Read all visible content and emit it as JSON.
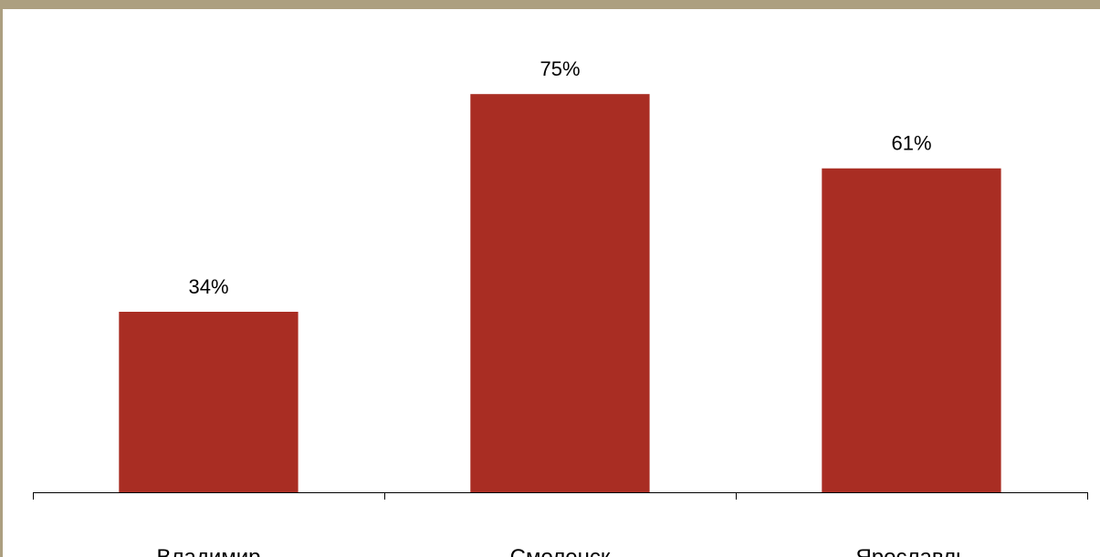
{
  "chart_data": {
    "type": "bar",
    "categories": [
      "Владимир",
      "Смоленск",
      "Ярославль"
    ],
    "values": [
      34,
      75,
      61
    ],
    "data_labels": [
      "34%",
      "75%",
      "61%"
    ],
    "ylim": [
      0,
      91
    ],
    "grid": false,
    "legend": "none",
    "colors": {
      "bar": "#a92d23",
      "frame": "#ac9f80",
      "axis": "#000000"
    }
  }
}
